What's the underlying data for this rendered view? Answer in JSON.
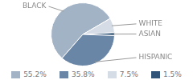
{
  "chart_data": {
    "type": "pie",
    "categories": [
      "BLACK",
      "HISPANIC",
      "WHITE",
      "ASIAN"
    ],
    "values": [
      55.2,
      35.8,
      7.5,
      1.5
    ],
    "value_labels": [
      "55.2%",
      "35.8%",
      "7.5%",
      "1.5%"
    ],
    "colors": [
      "#a3b3c6",
      "#6a86a6",
      "#d5dce5",
      "#2f5478"
    ],
    "legend": "bottom"
  }
}
